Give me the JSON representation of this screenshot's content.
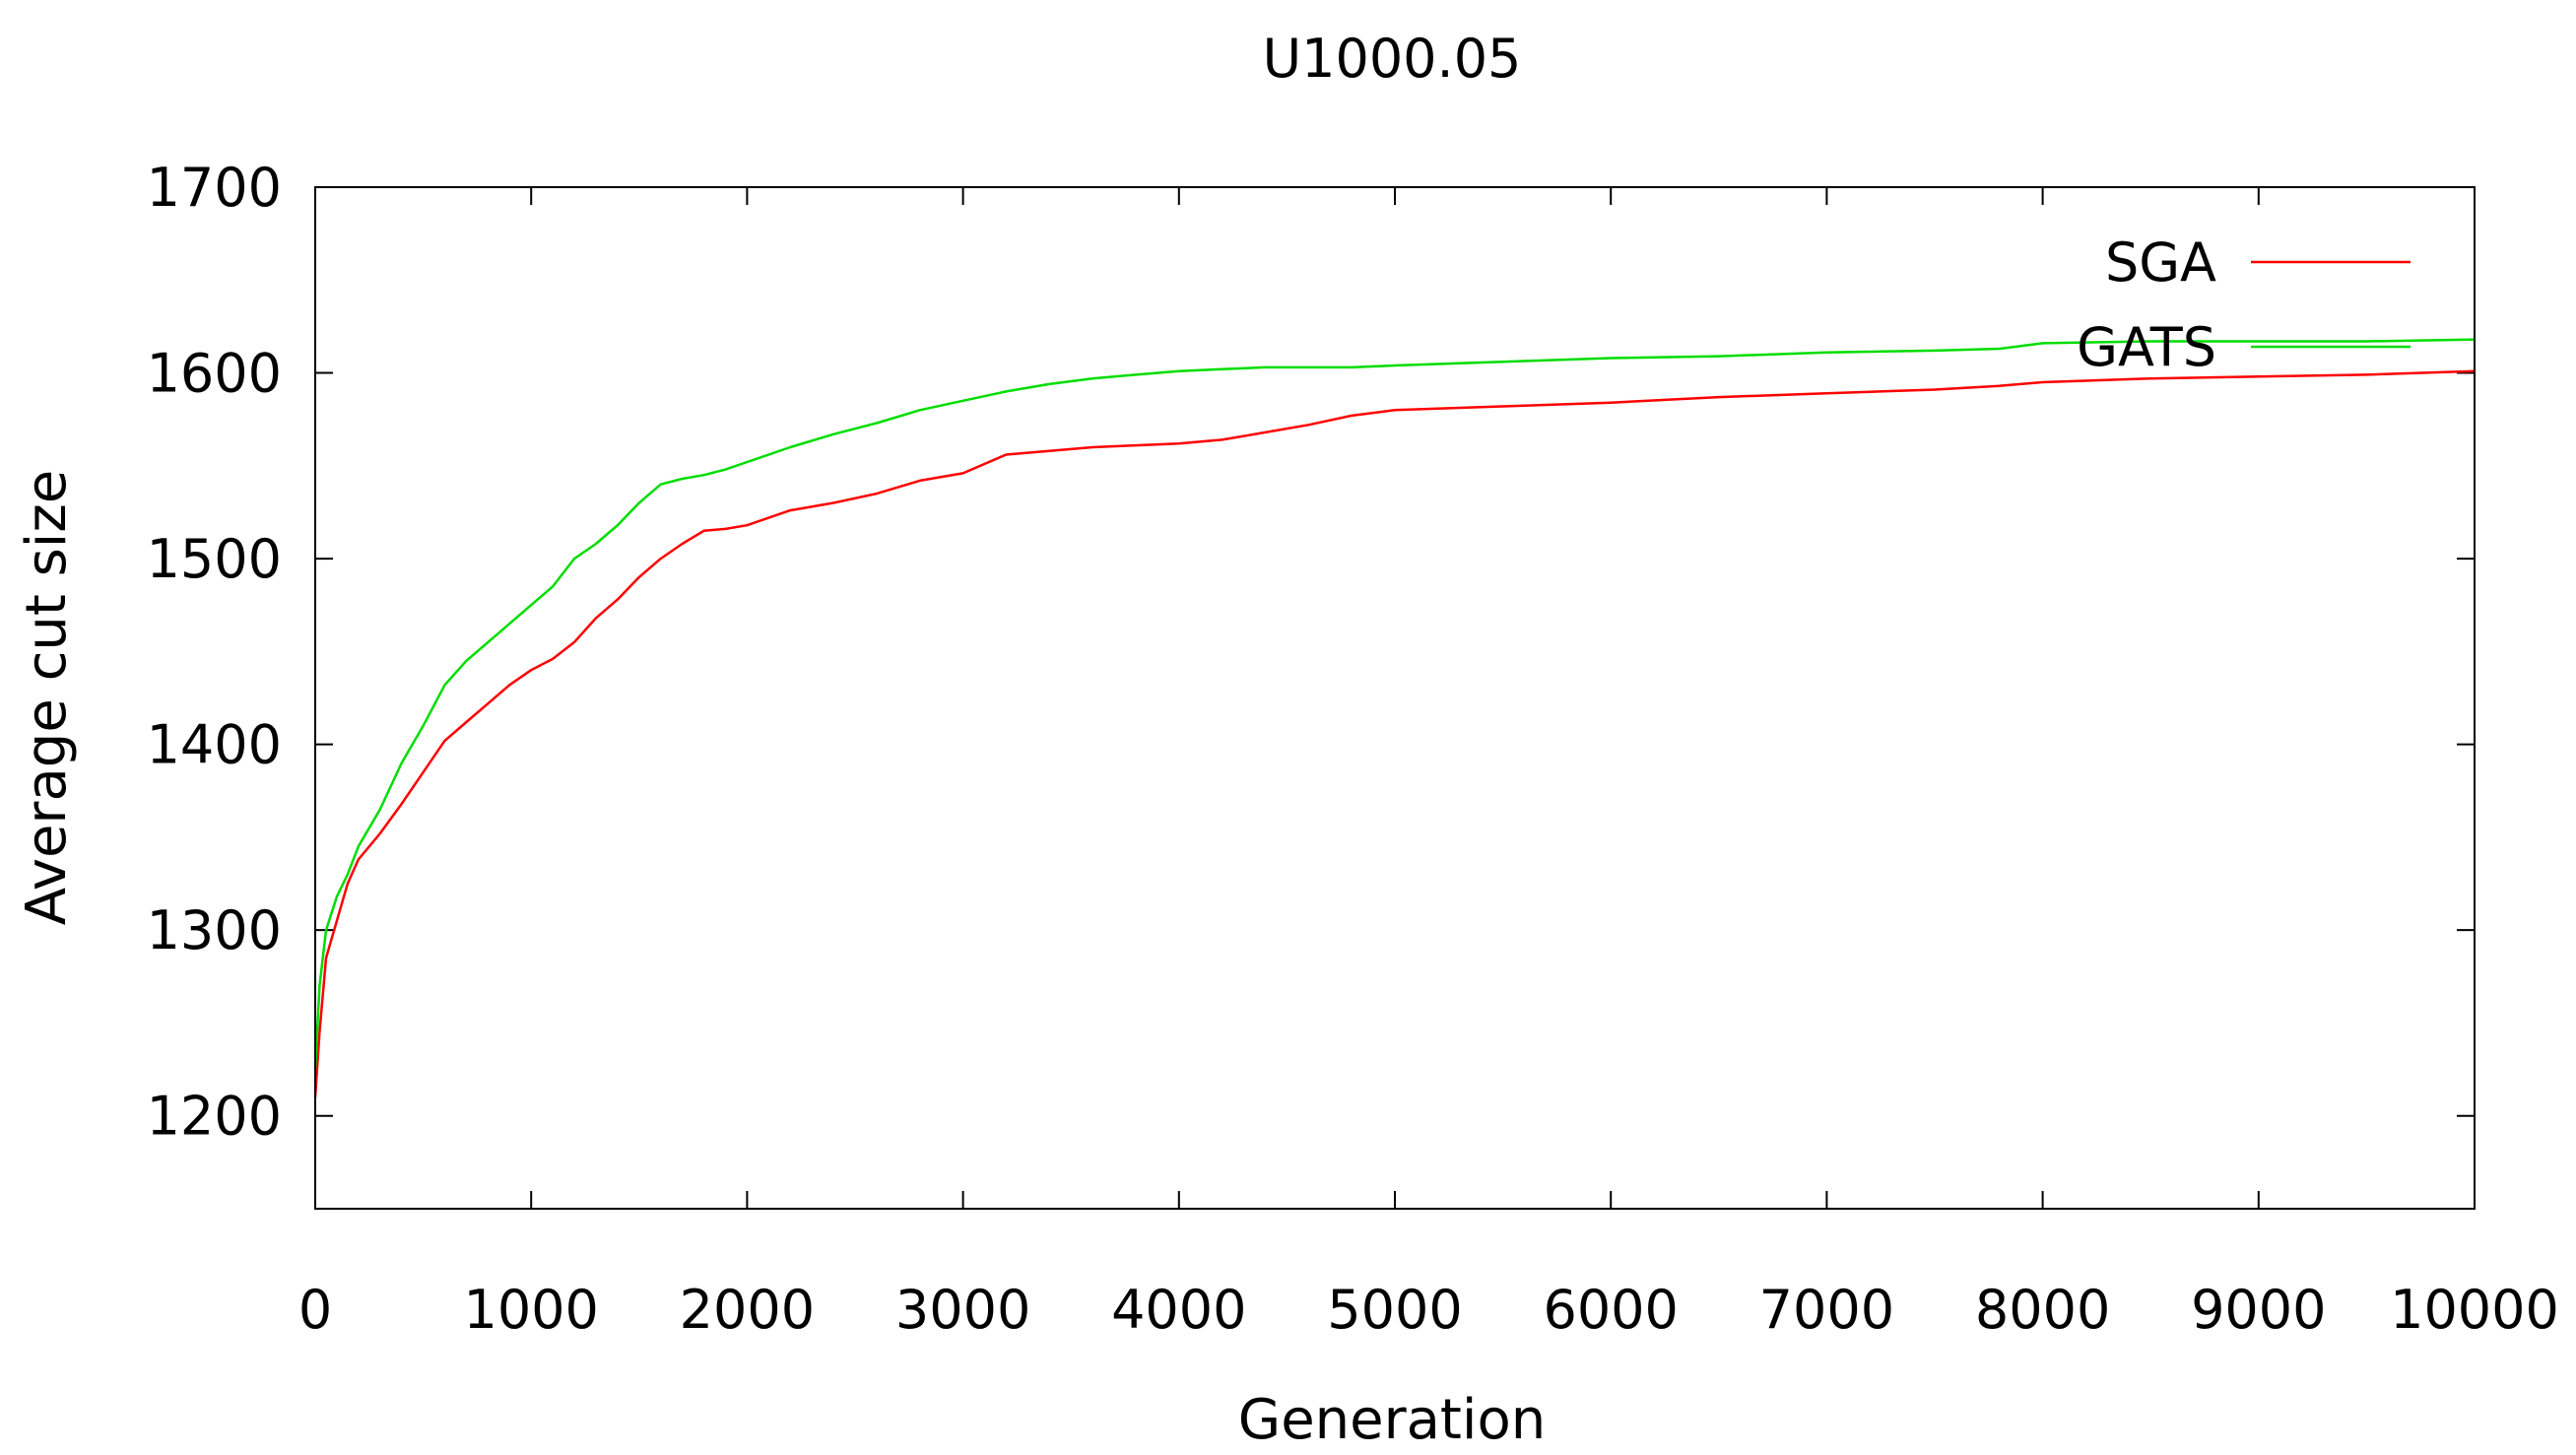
{
  "chart_data": {
    "type": "line",
    "title": "U1000.05",
    "xlabel": "Generation",
    "ylabel": "Average cut size",
    "xlim": [
      0,
      10000
    ],
    "ylim": [
      1150,
      1700
    ],
    "xticks": [
      0,
      1000,
      2000,
      3000,
      4000,
      5000,
      6000,
      7000,
      8000,
      9000,
      10000
    ],
    "yticks": [
      1200,
      1300,
      1400,
      1500,
      1600,
      1700
    ],
    "grid": false,
    "legend_position": "top-right",
    "series": [
      {
        "name": "SGA",
        "color": "#ff0000",
        "x": [
          0,
          20,
          50,
          100,
          150,
          200,
          300,
          400,
          500,
          600,
          700,
          800,
          900,
          1000,
          1100,
          1200,
          1300,
          1400,
          1500,
          1600,
          1700,
          1800,
          1900,
          2000,
          2200,
          2400,
          2600,
          2800,
          3000,
          3200,
          3400,
          3600,
          3800,
          4000,
          4200,
          4400,
          4600,
          4800,
          5000,
          5500,
          6000,
          6500,
          7000,
          7500,
          7800,
          8000,
          8500,
          9000,
          9500,
          10000
        ],
        "y": [
          1210,
          1245,
          1285,
          1305,
          1325,
          1338,
          1352,
          1368,
          1385,
          1402,
          1412,
          1422,
          1432,
          1440,
          1446,
          1455,
          1468,
          1478,
          1490,
          1500,
          1508,
          1515,
          1516,
          1518,
          1526,
          1530,
          1535,
          1542,
          1546,
          1556,
          1558,
          1560,
          1561,
          1562,
          1564,
          1568,
          1572,
          1577,
          1580,
          1582,
          1584,
          1587,
          1589,
          1591,
          1593,
          1595,
          1597,
          1598,
          1599,
          1601
        ]
      },
      {
        "name": "GATS",
        "color": "#00dd00",
        "x": [
          0,
          20,
          50,
          100,
          150,
          200,
          300,
          400,
          500,
          600,
          700,
          800,
          900,
          1000,
          1100,
          1200,
          1300,
          1400,
          1500,
          1600,
          1700,
          1800,
          1900,
          2000,
          2200,
          2400,
          2600,
          2800,
          3000,
          3200,
          3400,
          3600,
          3800,
          4000,
          4200,
          4400,
          4600,
          4800,
          5000,
          5500,
          6000,
          6500,
          7000,
          7500,
          7800,
          8000,
          8500,
          9000,
          9500,
          10000
        ],
        "y": [
          1225,
          1270,
          1300,
          1318,
          1330,
          1345,
          1365,
          1390,
          1410,
          1432,
          1445,
          1455,
          1465,
          1475,
          1485,
          1500,
          1508,
          1518,
          1530,
          1540,
          1543,
          1545,
          1548,
          1552,
          1560,
          1567,
          1573,
          1580,
          1585,
          1590,
          1594,
          1597,
          1599,
          1601,
          1602,
          1603,
          1603,
          1603,
          1604,
          1606,
          1608,
          1609,
          1611,
          1612,
          1613,
          1616,
          1617,
          1617,
          1617,
          1618
        ]
      }
    ]
  }
}
